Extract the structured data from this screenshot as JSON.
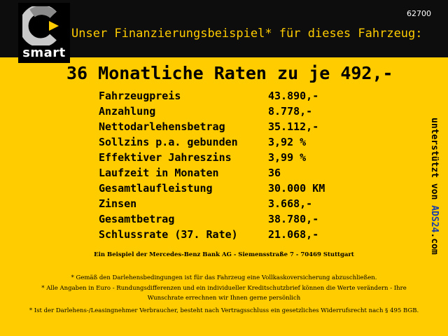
{
  "header": {
    "brand": "smart",
    "title": "Unser Finanzierungsbeispiel* für dieses Fahrzeug:",
    "reference": "62700",
    "colors": {
      "background": "#ffcc00",
      "header_bar": "#0d0d0d",
      "title_text": "#ffcc00",
      "logo_light": "#c9c9c9",
      "logo_dark": "#707070",
      "logo_accent": "#ffcc00"
    }
  },
  "headline": "36 Monatliche Raten zu je 492,-",
  "finance": {
    "rows": [
      {
        "label": "Fahrzeugpreis",
        "value": "43.890,-"
      },
      {
        "label": "Anzahlung",
        "value": "8.778,-"
      },
      {
        "label": "Nettodarlehensbetrag",
        "value": "35.112,-"
      },
      {
        "label": "Sollzins p.a. gebunden",
        "value": "3,92 %"
      },
      {
        "label": "Effektiver Jahreszins",
        "value": "3,99 %"
      },
      {
        "label": "Laufzeit in Monaten",
        "value": "36"
      },
      {
        "label": "Gesamtlaufleistung",
        "value": "30.000 KM"
      },
      {
        "label": "Zinsen",
        "value": "3.668,-"
      },
      {
        "label": "Gesamtbetrag",
        "value": "38.780,-"
      },
      {
        "label": "Schlussrate (37. Rate)",
        "value": "21.068,-"
      }
    ]
  },
  "side_credit": {
    "prefix": "unterstützt von ",
    "brand": "ADS24",
    "suffix": ".com",
    "brand_color": "#1a3fa8"
  },
  "footnotes": {
    "bank": "Ein Beispiel der Mercedes-Benz Bank AG - Siemensstraße 7 - 70469 Stuttgart",
    "insurance": "* Gemäß den Darlehensbedingungen ist für das Fahrzeug eine Vollkaskoversicherung abzuschließen.",
    "euro_line1": "* Alle Angaben in Euro - Rundungsdifferenzen und ein individueller Kreditschutzbrief können die Werte verändern - Ihre",
    "euro_line2": "Wunschrate errechnen wir Ihnen gerne persönlich",
    "withdrawal": "* Ist der Darlehens-/Leasingnehmer Verbraucher, besteht nach Vertragsschluss ein gesetzliches Widerrufsrecht nach § 495 BGB."
  }
}
